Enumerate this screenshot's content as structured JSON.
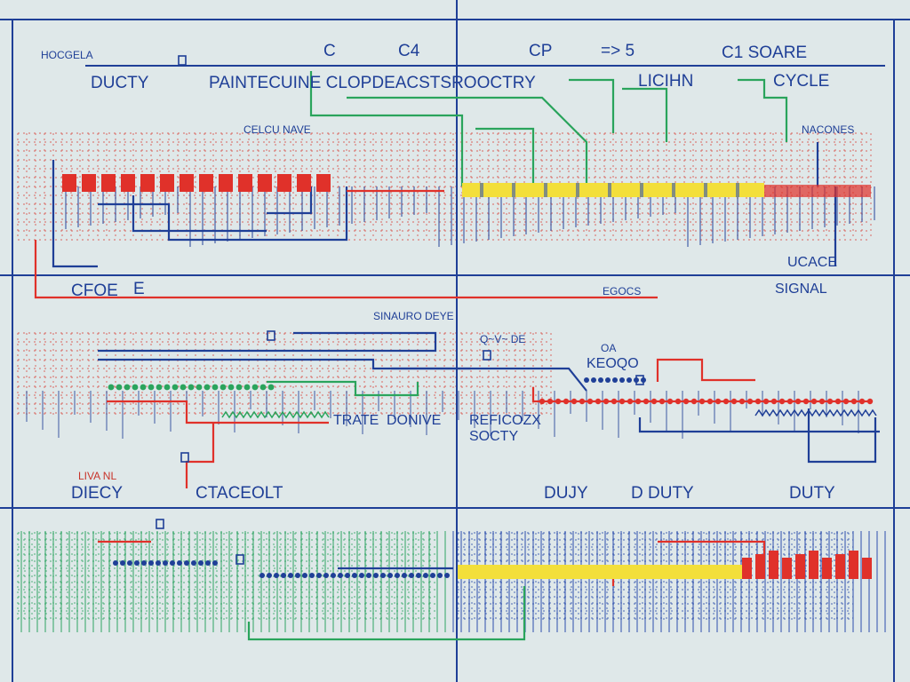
{
  "labels": {
    "corner": "HOCGELA",
    "c1": "C",
    "c4": "C4",
    "cp": "CP",
    "gt5": "=> 5",
    "csoare": "C1 SOARE",
    "duty_top": "DUCTY",
    "title_long": "PAINTECUINE CLOPDEACSTSROOCTRY",
    "light": "LICIHN",
    "cycle": "CYCLE",
    "small1": "CELCU NAVE",
    "small_right": "NACONES",
    "ucale": "UCACE",
    "signal": "SIGNAL",
    "cfoc": "CFOE",
    "e_mark": "E",
    "small_mid": "EGOCS",
    "sinauro": "SINAURO DEYE",
    "qv": "Q~V~ DE",
    "oa": "OA",
    "keqo": "KEOQO",
    "trate": "TRATE",
    "donive": "DONIVE",
    "reric": "REFICOZX",
    "sot": "SOCTY",
    "liva": "LIVA NL",
    "diecy": "DIECY",
    "ctaceolt": "CTACEOLT",
    "duty1": "DUJY",
    "duty2": "D DUTY",
    "duty3": "DUTY"
  },
  "colors": {
    "background": "#dfe8e9",
    "line_blue": "#1f3f97",
    "signal_red": "#e0312a",
    "signal_yellow": "#f3df3a",
    "trace_green": "#2aa45c",
    "grid_red": "#d8534b",
    "grid_blue": "#3556b0",
    "grid_green": "#38a86a"
  }
}
